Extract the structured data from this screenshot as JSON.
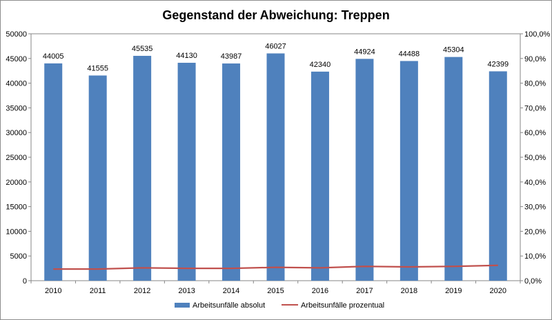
{
  "chart_data": {
    "type": "bar",
    "title": "Gegenstand der Abweichung: Treppen",
    "categories": [
      "2010",
      "2011",
      "2012",
      "2013",
      "2014",
      "2015",
      "2016",
      "2017",
      "2018",
      "2019",
      "2020"
    ],
    "series": [
      {
        "name": "Arbeitsunfälle absolut",
        "type": "bar",
        "axis": "left",
        "color": "#4f81bd",
        "values": [
          44005,
          41555,
          45535,
          44130,
          43987,
          46027,
          42340,
          44924,
          44488,
          45304,
          42399
        ],
        "data_labels": [
          "44005",
          "41555",
          "45535",
          "44130",
          "43987",
          "46027",
          "42340",
          "44924",
          "44488",
          "45304",
          "42399"
        ]
      },
      {
        "name": "Arbeitsunfälle prozentual",
        "type": "line",
        "axis": "right",
        "color": "#c0504d",
        "values": [
          4.7,
          4.7,
          5.2,
          5.0,
          5.0,
          5.4,
          5.2,
          5.8,
          5.6,
          5.8,
          6.2
        ]
      }
    ],
    "y_left": {
      "min": 0,
      "max": 50000,
      "ticks": [
        0,
        5000,
        10000,
        15000,
        20000,
        25000,
        30000,
        35000,
        40000,
        45000,
        50000
      ],
      "tick_labels": [
        "0",
        "5000",
        "10000",
        "15000",
        "20000",
        "25000",
        "30000",
        "35000",
        "40000",
        "45000",
        "50000"
      ]
    },
    "y_right": {
      "min": 0,
      "max": 100,
      "ticks": [
        0,
        10,
        20,
        30,
        40,
        50,
        60,
        70,
        80,
        90,
        100
      ],
      "tick_labels": [
        "0,0%",
        "10,0%",
        "20,0%",
        "30,0%",
        "40,0%",
        "50,0%",
        "60,0%",
        "70,0%",
        "80,0%",
        "90,0%",
        "100,0%"
      ]
    },
    "grid": false,
    "legend_position": "bottom",
    "xlabel": "",
    "ylabel": ""
  }
}
